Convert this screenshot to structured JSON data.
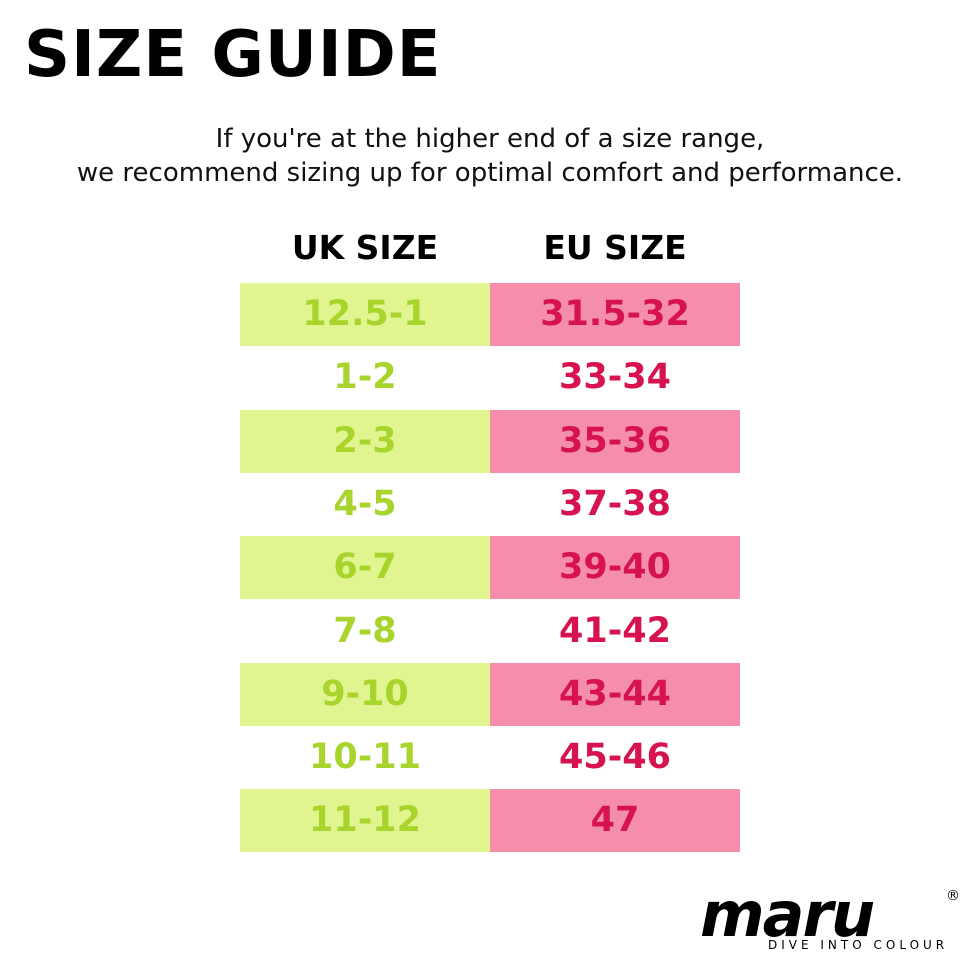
{
  "header": {
    "title": "SIZE GUIDE",
    "subtitle": [
      "If you're at the higher end of a size range,",
      "we recommend sizing up for optimal comfort and performance."
    ]
  },
  "table": {
    "columns": [
      "UK SIZE",
      "EU SIZE"
    ],
    "rows": [
      [
        "12.5-1",
        "31.5-32"
      ],
      [
        "1-2",
        "33-34"
      ],
      [
        "2-3",
        "35-36"
      ],
      [
        "4-5",
        "37-38"
      ],
      [
        "6-7",
        "39-40"
      ],
      [
        "7-8",
        "41-42"
      ],
      [
        "9-10",
        "43-44"
      ],
      [
        "10-11",
        "45-46"
      ],
      [
        "11-12",
        "47"
      ]
    ]
  },
  "logo": {
    "name": "maru",
    "mark": "®",
    "tagline": "DIVE INTO COLOUR"
  }
}
